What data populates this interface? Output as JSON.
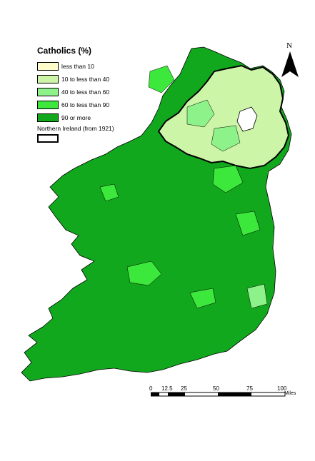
{
  "legend": {
    "title": "Catholics (%)",
    "items": [
      {
        "label": "less than 10",
        "color": "#fffccc"
      },
      {
        "label": "10 to less than 40",
        "color": "#ccf5a8"
      },
      {
        "label": "40 to less than 60",
        "color": "#8ef28a"
      },
      {
        "label": "60 to less than 90",
        "color": "#3ce83c"
      },
      {
        "label": "90 or more",
        "color": "#12a81e"
      }
    ],
    "boundary_label": "Northern Ireland (from 1921)"
  },
  "north_arrow": {
    "label": "N"
  },
  "scale_bar": {
    "ticks": [
      "0",
      "12.5",
      "25",
      "50",
      "75",
      "100"
    ],
    "unit": "Miles"
  }
}
